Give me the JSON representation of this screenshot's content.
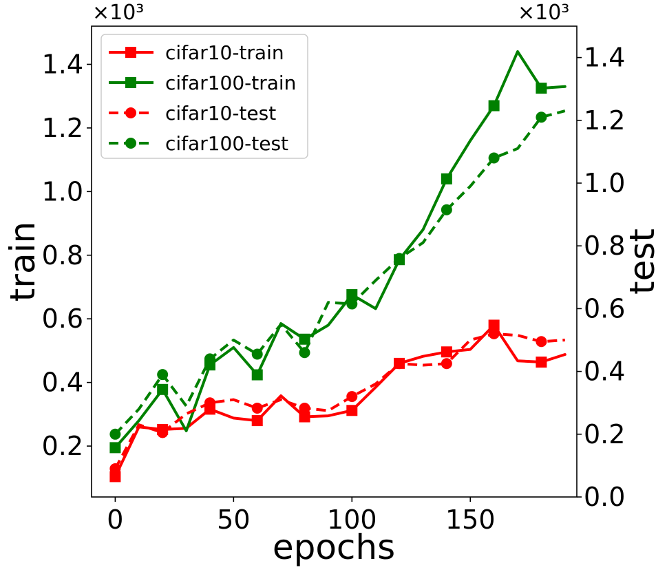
{
  "chart_data": {
    "type": "line",
    "xlabel": "epochs",
    "ylabel_left": "train",
    "ylabel_right": "test",
    "scale_label_left": "×10³",
    "scale_label_right": "×10³",
    "xlim": [
      -10,
      195
    ],
    "ylim_left": [
      0.04,
      1.52
    ],
    "ylim_right": [
      0.0,
      1.5
    ],
    "x_ticks": [
      0,
      50,
      100,
      150
    ],
    "x_tick_labels": [
      "0",
      "50",
      "100",
      "150"
    ],
    "y_ticks_left": [
      0.2,
      0.4,
      0.6,
      0.8,
      1.0,
      1.2,
      1.4
    ],
    "y_tick_labels_left": [
      "0.2",
      "0.4",
      "0.6",
      "0.8",
      "1.0",
      "1.2",
      "1.4"
    ],
    "y_ticks_right": [
      0.0,
      0.2,
      0.4,
      0.6,
      0.8,
      1.0,
      1.2,
      1.4
    ],
    "y_tick_labels_right": [
      "0.0",
      "0.2",
      "0.4",
      "0.6",
      "0.8",
      "1.0",
      "1.2",
      "1.4"
    ],
    "legend_position": "top-left",
    "grid": false,
    "x": [
      0,
      10,
      20,
      30,
      40,
      50,
      60,
      70,
      80,
      90,
      100,
      110,
      120,
      130,
      140,
      150,
      160,
      170,
      180,
      190
    ],
    "series": [
      {
        "name": "cifar10-train",
        "axis": "left",
        "color": "#ff0000",
        "linestyle": "solid",
        "marker": "square",
        "marker_every": 2,
        "values": [
          0.104,
          0.26,
          0.252,
          0.256,
          0.316,
          0.288,
          0.28,
          0.358,
          0.292,
          0.295,
          0.312,
          0.385,
          0.46,
          0.482,
          0.496,
          0.504,
          0.58,
          0.468,
          0.464,
          0.488
        ]
      },
      {
        "name": "cifar100-train",
        "axis": "left",
        "color": "#008000",
        "linestyle": "solid",
        "marker": "square",
        "marker_every": 2,
        "values": [
          0.195,
          0.28,
          0.378,
          0.248,
          0.455,
          0.51,
          0.424,
          0.585,
          0.536,
          0.58,
          0.676,
          0.632,
          0.786,
          0.88,
          1.04,
          1.16,
          1.27,
          1.44,
          1.325,
          1.33
        ]
      },
      {
        "name": "cifar10-test",
        "axis": "right",
        "color": "#ff0000",
        "linestyle": "dashed",
        "marker": "circle",
        "marker_every": 2,
        "values": [
          0.09,
          0.23,
          0.205,
          0.265,
          0.3,
          0.31,
          0.283,
          0.31,
          0.283,
          0.275,
          0.32,
          0.36,
          0.425,
          0.42,
          0.425,
          0.5,
          0.52,
          0.515,
          0.495,
          0.5
        ]
      },
      {
        "name": "cifar100-test",
        "axis": "right",
        "color": "#008000",
        "linestyle": "dashed",
        "marker": "circle",
        "marker_every": 2,
        "values": [
          0.2,
          0.28,
          0.39,
          0.29,
          0.44,
          0.5,
          0.455,
          0.55,
          0.46,
          0.62,
          0.615,
          0.69,
          0.76,
          0.81,
          0.915,
          0.99,
          1.08,
          1.11,
          1.21,
          1.23
        ]
      }
    ]
  }
}
